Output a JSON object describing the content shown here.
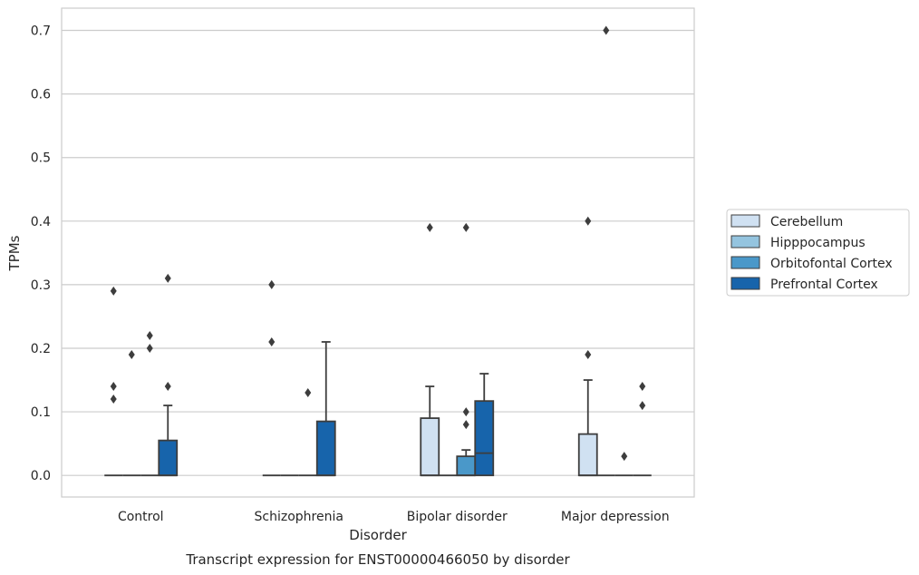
{
  "chart_data": {
    "type": "box",
    "caption": "Transcript expression for ENST00000466050 by disorder",
    "xlabel": "Disorder",
    "ylabel": "TPMs",
    "ylim": [
      -0.034,
      0.735
    ],
    "yticks": [
      0.0,
      0.1,
      0.2,
      0.3,
      0.4,
      0.5,
      0.6,
      0.7
    ],
    "ytick_labels": [
      "0.0",
      "0.1",
      "0.2",
      "0.3",
      "0.4",
      "0.5",
      "0.6",
      "0.7"
    ],
    "grid": "horizontal",
    "legend_position": "right",
    "categories": [
      "Control",
      "Schizophrenia",
      "Bipolar disorder",
      "Major depression"
    ],
    "series": [
      {
        "name": "Cerebellum",
        "color": "#d0e1f2",
        "boxes": [
          {
            "q1": 0,
            "median": 0,
            "q3": 0,
            "whisker_low": 0,
            "whisker_high": 0,
            "outliers": [
              0.12,
              0.14,
              0.29
            ]
          },
          {
            "q1": 0,
            "median": 0,
            "q3": 0,
            "whisker_low": 0,
            "whisker_high": 0,
            "outliers": [
              0.21,
              0.3
            ]
          },
          {
            "q1": 0,
            "median": 0,
            "q3": 0.09,
            "whisker_low": 0,
            "whisker_high": 0.14,
            "outliers": [
              0.39
            ]
          },
          {
            "q1": 0,
            "median": 0,
            "q3": 0.065,
            "whisker_low": 0,
            "whisker_high": 0.15,
            "outliers": [
              0.19,
              0.4
            ]
          }
        ]
      },
      {
        "name": "Hipppocampus",
        "color": "#94c4df",
        "boxes": [
          {
            "q1": 0,
            "median": 0,
            "q3": 0,
            "whisker_low": 0,
            "whisker_high": 0,
            "outliers": [
              0.19
            ]
          },
          {
            "q1": 0,
            "median": 0,
            "q3": 0,
            "whisker_low": 0,
            "whisker_high": 0,
            "outliers": []
          },
          {
            "q1": 0,
            "median": 0,
            "q3": 0,
            "whisker_low": 0,
            "whisker_high": 0,
            "outliers": []
          },
          {
            "q1": 0,
            "median": 0,
            "q3": 0,
            "whisker_low": 0,
            "whisker_high": 0,
            "outliers": [
              0.7
            ]
          }
        ]
      },
      {
        "name": "Orbitofontal Cortex",
        "color": "#4a98c9",
        "boxes": [
          {
            "q1": 0,
            "median": 0,
            "q3": 0,
            "whisker_low": 0,
            "whisker_high": 0,
            "outliers": [
              0.2,
              0.22
            ]
          },
          {
            "q1": 0,
            "median": 0,
            "q3": 0,
            "whisker_low": 0,
            "whisker_high": 0,
            "outliers": [
              0.13
            ]
          },
          {
            "q1": 0,
            "median": 0,
            "q3": 0.03,
            "whisker_low": 0,
            "whisker_high": 0.04,
            "outliers": [
              0.08,
              0.1,
              0.39
            ]
          },
          {
            "q1": 0,
            "median": 0,
            "q3": 0,
            "whisker_low": 0,
            "whisker_high": 0,
            "outliers": [
              0.03
            ]
          }
        ]
      },
      {
        "name": "Prefrontal Cortex",
        "color": "#1764ab",
        "boxes": [
          {
            "q1": 0,
            "median": 0,
            "q3": 0.055,
            "whisker_low": 0,
            "whisker_high": 0.11,
            "outliers": [
              0.14,
              0.31
            ]
          },
          {
            "q1": 0,
            "median": 0,
            "q3": 0.085,
            "whisker_low": 0,
            "whisker_high": 0.21,
            "outliers": []
          },
          {
            "q1": 0,
            "median": 0.035,
            "q3": 0.117,
            "whisker_low": 0,
            "whisker_high": 0.16,
            "outliers": []
          },
          {
            "q1": 0,
            "median": 0,
            "q3": 0,
            "whisker_low": 0,
            "whisker_high": 0,
            "outliers": [
              0.11,
              0.14
            ]
          }
        ]
      }
    ]
  }
}
